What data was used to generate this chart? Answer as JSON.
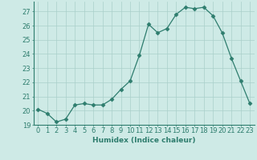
{
  "x": [
    0,
    1,
    2,
    3,
    4,
    5,
    6,
    7,
    8,
    9,
    10,
    11,
    12,
    13,
    14,
    15,
    16,
    17,
    18,
    19,
    20,
    21,
    22,
    23
  ],
  "y": [
    20.1,
    19.8,
    19.2,
    19.4,
    20.4,
    20.5,
    20.4,
    20.4,
    20.8,
    21.5,
    22.1,
    23.9,
    26.1,
    25.5,
    25.8,
    26.8,
    27.3,
    27.2,
    27.3,
    26.7,
    25.5,
    23.7,
    22.1,
    20.5
  ],
  "xlabel": "Humidex (Indice chaleur)",
  "xlim": [
    -0.5,
    23.5
  ],
  "ylim": [
    19.0,
    27.7
  ],
  "yticks": [
    19,
    20,
    21,
    22,
    23,
    24,
    25,
    26,
    27
  ],
  "xticks": [
    0,
    1,
    2,
    3,
    4,
    5,
    6,
    7,
    8,
    9,
    10,
    11,
    12,
    13,
    14,
    15,
    16,
    17,
    18,
    19,
    20,
    21,
    22,
    23
  ],
  "line_color": "#2e7d6e",
  "marker": "D",
  "marker_size": 2.5,
  "bg_color": "#ceeae6",
  "grid_color": "#aacfca",
  "label_fontsize": 6.5,
  "tick_fontsize": 6.0
}
